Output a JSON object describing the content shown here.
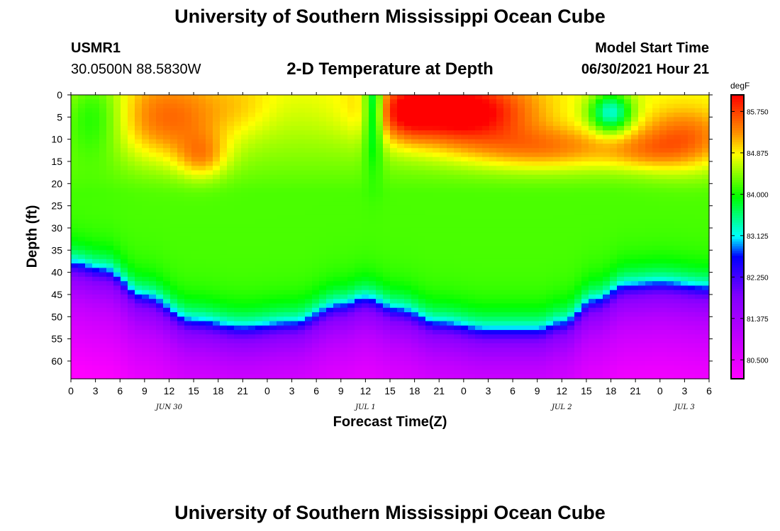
{
  "header": {
    "title": "University of Southern Mississippi Ocean Cube",
    "station": "USMR1",
    "location": "30.0500N  88.5830W",
    "model_start_label": "Model Start Time",
    "model_start_value": "06/30/2021 Hour 21"
  },
  "footer": {
    "title": "University of Southern Mississippi Ocean Cube"
  },
  "chart_data": {
    "type": "heatmap",
    "title": "2-D Temperature at Depth",
    "xlabel": "Forecast Time(Z)",
    "ylabel": "Depth (ft)",
    "x_hours_range": [
      0,
      78
    ],
    "y_depth_range": [
      0,
      64
    ],
    "x_tick_labels": [
      "0",
      "3",
      "6",
      "9",
      "12",
      "15",
      "18",
      "21",
      "0",
      "3",
      "6",
      "9",
      "12",
      "15",
      "18",
      "21",
      "0",
      "3",
      "6",
      "9",
      "12",
      "15",
      "18",
      "21",
      "0",
      "3",
      "6"
    ],
    "date_labels": [
      {
        "label": "JUN 30",
        "hour": 12
      },
      {
        "label": "JUL 1",
        "hour": 36
      },
      {
        "label": "JUL 2",
        "hour": 60
      },
      {
        "label": "JUL 3",
        "hour": 75
      }
    ],
    "y_tick_labels": [
      "0",
      "5",
      "10",
      "15",
      "20",
      "25",
      "30",
      "35",
      "40",
      "45",
      "50",
      "55",
      "60"
    ],
    "colorbar": {
      "unit": "degF",
      "min": 80.1,
      "max": 86.1,
      "tick_labels": [
        "85.750",
        "84.875",
        "84.000",
        "83.125",
        "82.250",
        "81.375",
        "80.500"
      ]
    },
    "thermocline_depth_ft": [
      {
        "hour": 0,
        "depth": 37.5
      },
      {
        "hour": 4,
        "depth": 39
      },
      {
        "hour": 9,
        "depth": 45
      },
      {
        "hour": 15,
        "depth": 50.5
      },
      {
        "hour": 21,
        "depth": 52
      },
      {
        "hour": 27,
        "depth": 51
      },
      {
        "hour": 33,
        "depth": 47
      },
      {
        "hour": 36,
        "depth": 45.5
      },
      {
        "hour": 40,
        "depth": 48
      },
      {
        "hour": 45,
        "depth": 51
      },
      {
        "hour": 51,
        "depth": 52.5
      },
      {
        "hour": 57,
        "depth": 52.5
      },
      {
        "hour": 60,
        "depth": 51
      },
      {
        "hour": 64,
        "depth": 46
      },
      {
        "hour": 68,
        "depth": 42.5
      },
      {
        "hour": 72,
        "depth": 42
      },
      {
        "hour": 78,
        "depth": 43
      }
    ],
    "warm_cores": [
      {
        "hour": 12,
        "depth": 6,
        "rh": 7,
        "rd": 9,
        "amp": 0.9
      },
      {
        "hour": 16,
        "depth": 14,
        "rh": 3,
        "rd": 5,
        "amp": 0.7
      },
      {
        "hour": 21,
        "depth": 3,
        "rh": 4,
        "rd": 6,
        "amp": 0.2
      },
      {
        "hour": 47,
        "depth": 4,
        "rh": 9,
        "rd": 7,
        "amp": 1.8
      },
      {
        "hour": 41,
        "depth": 4,
        "rh": 3,
        "rd": 6,
        "amp": 0.6
      },
      {
        "hour": 58,
        "depth": 12,
        "rh": 10,
        "rd": 5,
        "amp": 0.9
      },
      {
        "hour": 75,
        "depth": 10,
        "rh": 6,
        "rd": 7,
        "amp": 1.0
      },
      {
        "hour": 70,
        "depth": 13,
        "rh": 5,
        "rd": 4,
        "amp": 0.4
      }
    ],
    "cool_cores": [
      {
        "hour": 37,
        "depth": 2,
        "rh": 1.2,
        "rd": 12,
        "amp": 1.4
      },
      {
        "hour": 66,
        "depth": 4,
        "rh": 2.5,
        "rd": 4.5,
        "amp": 1.5
      },
      {
        "hour": 3,
        "depth": 4,
        "rh": 4,
        "rd": 10,
        "amp": 0.7
      }
    ]
  }
}
